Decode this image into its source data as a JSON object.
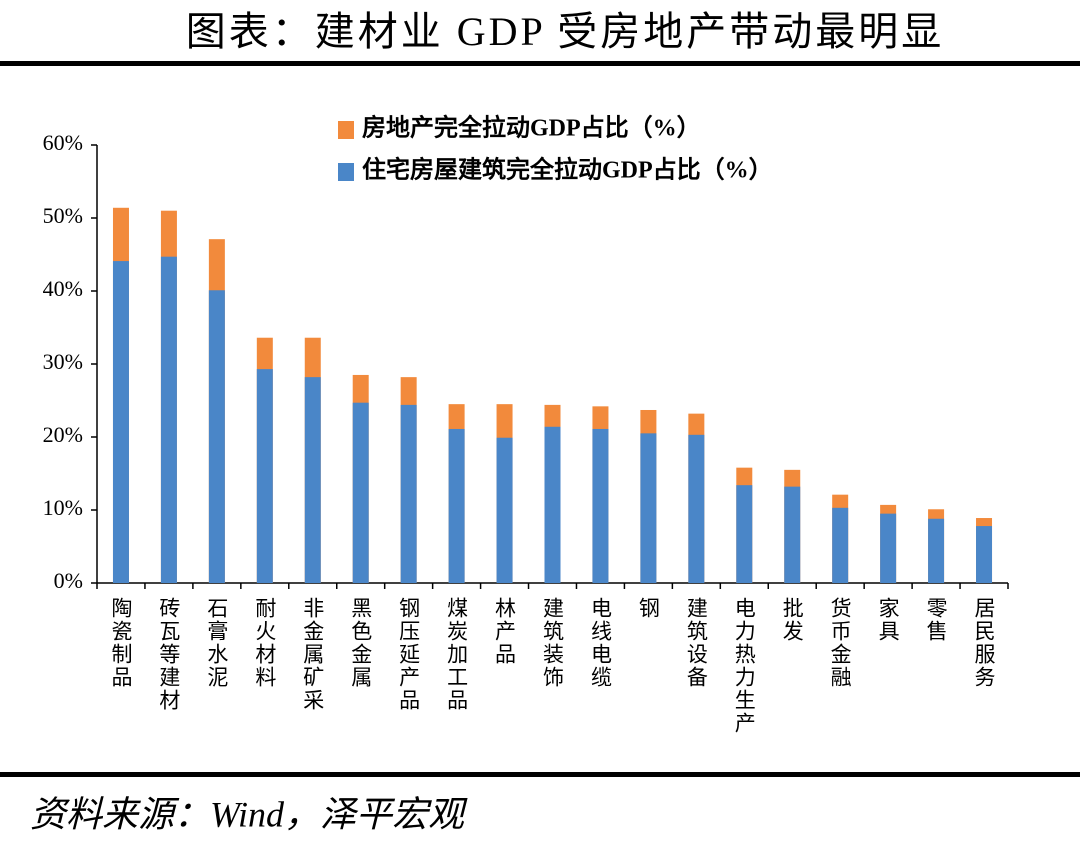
{
  "chart_data": {
    "type": "bar",
    "title": "图表：建材业 GDP 受房地产带动最明显",
    "source": "资料来源：Wind，泽平宏观",
    "categories": [
      "陶瓷制品",
      "砖瓦等建材",
      "石膏水泥",
      "耐火材料",
      "非金属矿采",
      "黑色金属",
      "钢压延产品",
      "煤炭加工品",
      "林产品",
      "建筑装饰",
      "电线电缆",
      "钢",
      "建筑设备",
      "电力热力生产",
      "批发",
      "货币金融",
      "家具",
      "零售",
      "居民服务"
    ],
    "series": [
      {
        "name": "房地产完全拉动GDP占比（%）",
        "color": "#f28a3c",
        "values": [
          51.4,
          51.0,
          47.1,
          33.6,
          33.6,
          28.5,
          28.2,
          24.5,
          24.5,
          24.4,
          24.2,
          23.7,
          23.2,
          15.8,
          15.5,
          12.1,
          10.7,
          10.1,
          8.9
        ]
      },
      {
        "name": "住宅房屋建筑完全拉动GDP占比（%）",
        "color": "#4a86c8",
        "values": [
          44.1,
          44.7,
          40.1,
          29.3,
          28.2,
          24.7,
          24.4,
          21.1,
          19.9,
          21.4,
          21.1,
          20.5,
          20.3,
          13.4,
          13.2,
          10.3,
          9.5,
          8.8,
          7.8
        ]
      }
    ],
    "ylim": [
      0,
      60
    ],
    "yticks": [
      {
        "value": 0,
        "label": "0%"
      },
      {
        "value": 10,
        "label": "10%"
      },
      {
        "value": 20,
        "label": "20%"
      },
      {
        "value": 30,
        "label": "30%"
      },
      {
        "value": 40,
        "label": "40%"
      },
      {
        "value": 50,
        "label": "50%"
      },
      {
        "value": 60,
        "label": "60%"
      }
    ]
  }
}
